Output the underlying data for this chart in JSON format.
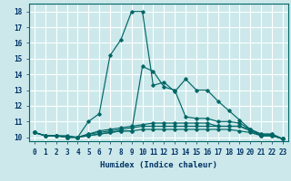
{
  "title": "",
  "xlabel": "Humidex (Indice chaleur)",
  "ylabel": "",
  "background_color": "#cce8ea",
  "grid_color": "#ffffff",
  "line_color": "#006666",
  "xlim": [
    -0.5,
    23.5
  ],
  "ylim": [
    9.75,
    18.5
  ],
  "xticks": [
    0,
    1,
    2,
    3,
    4,
    5,
    6,
    7,
    8,
    9,
    10,
    11,
    12,
    13,
    14,
    15,
    16,
    17,
    18,
    19,
    20,
    21,
    22,
    23
  ],
  "yticks": [
    10,
    11,
    12,
    13,
    14,
    15,
    16,
    17,
    18
  ],
  "series": [
    [
      10.3,
      10.1,
      10.1,
      10.1,
      10.0,
      11.0,
      11.5,
      15.2,
      16.2,
      18.0,
      18.0,
      13.3,
      13.5,
      12.9,
      13.7,
      13.0,
      13.0,
      12.3,
      11.7,
      11.1,
      10.5,
      10.2,
      10.2,
      9.9
    ],
    [
      10.3,
      10.1,
      10.1,
      10.0,
      10.0,
      10.1,
      10.2,
      10.3,
      10.4,
      10.4,
      14.5,
      14.2,
      13.2,
      13.0,
      11.3,
      11.2,
      11.2,
      11.0,
      11.0,
      10.9,
      10.5,
      10.1,
      10.1,
      9.9
    ],
    [
      10.3,
      10.1,
      10.1,
      10.0,
      10.0,
      10.2,
      10.3,
      10.4,
      10.5,
      10.6,
      10.7,
      10.7,
      10.7,
      10.7,
      10.7,
      10.7,
      10.7,
      10.7,
      10.7,
      10.7,
      10.5,
      10.2,
      10.2,
      9.9
    ],
    [
      10.3,
      10.1,
      10.1,
      10.0,
      10.0,
      10.2,
      10.4,
      10.5,
      10.6,
      10.7,
      10.8,
      10.9,
      10.9,
      10.9,
      10.9,
      10.9,
      10.9,
      10.7,
      10.7,
      10.7,
      10.4,
      10.1,
      10.1,
      9.9
    ],
    [
      10.3,
      10.1,
      10.1,
      10.0,
      10.0,
      10.1,
      10.2,
      10.3,
      10.4,
      10.4,
      10.5,
      10.5,
      10.5,
      10.5,
      10.5,
      10.5,
      10.5,
      10.5,
      10.5,
      10.4,
      10.3,
      10.1,
      10.1,
      9.9
    ]
  ]
}
